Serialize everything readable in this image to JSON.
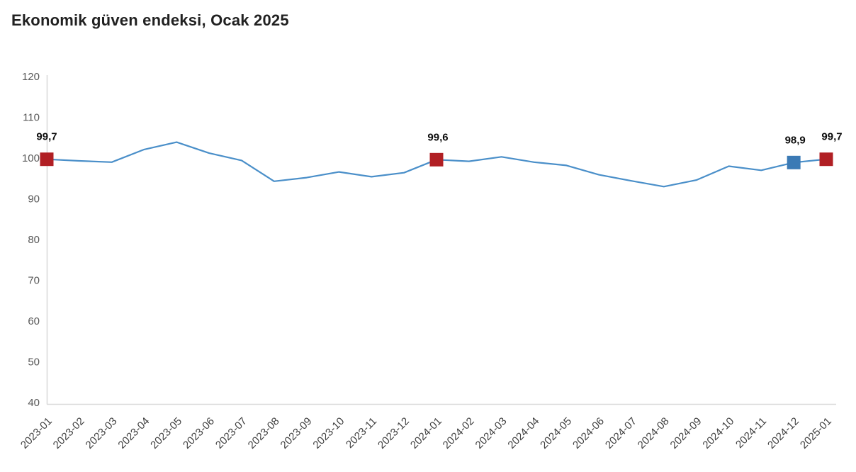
{
  "title": "Ekonomik güven endeksi, Ocak 2025",
  "colors": {
    "background": "#ffffff",
    "title_text": "#212121",
    "line": "#4a8fc9",
    "marker_red": "#b11f24",
    "marker_blue": "#3b7ab5",
    "axis_line": "#dadada",
    "y_tick_label": "#595959",
    "x_tick_label": "#3f3f3f",
    "data_label": "#0d0d0d"
  },
  "chart_data": {
    "type": "line",
    "title": "Ekonomik güven endeksi, Ocak 2025",
    "series_name": "Ekonomik güven endeksi",
    "x": [
      "2023-01",
      "2023-02",
      "2023-03",
      "2023-04",
      "2023-05",
      "2023-06",
      "2023-07",
      "2023-08",
      "2023-09",
      "2023-10",
      "2023-11",
      "2023-12",
      "2024-01",
      "2024-02",
      "2024-03",
      "2024-04",
      "2024-05",
      "2024-06",
      "2024-07",
      "2024-08",
      "2024-09",
      "2024-10",
      "2024-11",
      "2024-12",
      "2025-01"
    ],
    "values": [
      99.7,
      99.3,
      99.0,
      102.1,
      103.9,
      101.2,
      99.4,
      94.3,
      95.2,
      96.6,
      95.4,
      96.4,
      99.6,
      99.2,
      100.3,
      99.0,
      98.2,
      95.9,
      94.4,
      93.0,
      94.6,
      98.0,
      97.0,
      98.9,
      99.7
    ],
    "ylim": [
      40,
      120
    ],
    "yticks": [
      40,
      50,
      60,
      70,
      80,
      90,
      100,
      110,
      120
    ],
    "x_tick_rotation": 45,
    "grid": false,
    "legend": "none",
    "xlabel": "",
    "ylabel": "",
    "highlighted_points": [
      {
        "x": "2023-01",
        "value": 99.7,
        "label": "99,7",
        "color_hex": "#b11f24"
      },
      {
        "x": "2024-01",
        "value": 99.6,
        "label": "99,6",
        "color_hex": "#b11f24"
      },
      {
        "x": "2024-12",
        "value": 98.9,
        "label": "98,9",
        "color_hex": "#3b7ab5"
      },
      {
        "x": "2025-01",
        "value": 99.7,
        "label": "99,7",
        "color_hex": "#b11f24"
      }
    ]
  }
}
